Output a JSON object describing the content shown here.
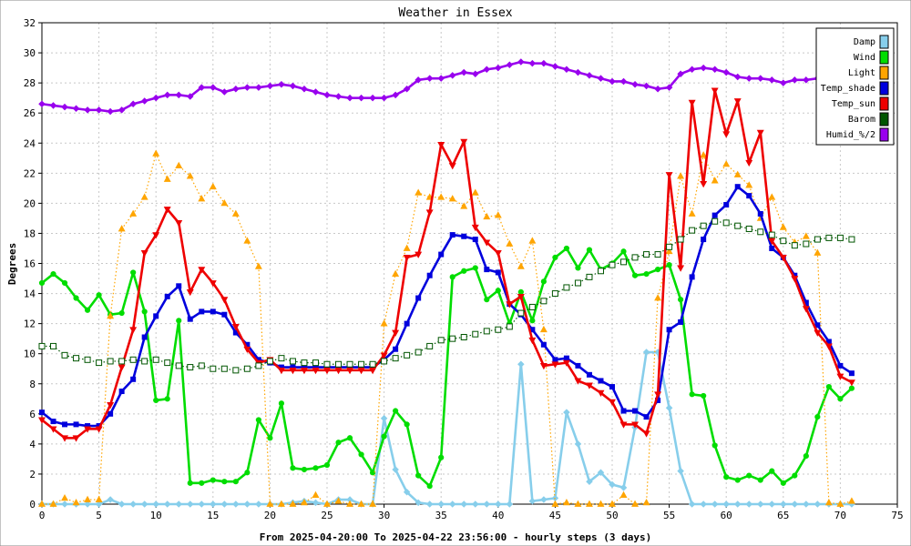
{
  "chart_data": {
    "type": "line",
    "title": "Weather in Essex",
    "xlabel": "From 2025-04-20:00 To 2025-04-22 23:56:00 - hourly steps (3 days)",
    "ylabel": "Degrees",
    "xlim": [
      0,
      75
    ],
    "ylim": [
      0,
      32
    ],
    "x_ticks": [
      0,
      5,
      10,
      15,
      20,
      25,
      30,
      35,
      40,
      45,
      50,
      55,
      60,
      65,
      70,
      75
    ],
    "y_ticks": [
      0,
      2,
      4,
      6,
      8,
      10,
      12,
      14,
      16,
      18,
      20,
      22,
      24,
      26,
      28,
      30,
      32
    ],
    "grid": true,
    "legend_position": "top-right",
    "series": [
      {
        "name": "Damp",
        "color": "#87ceeb",
        "style": "solid",
        "marker": "diamond",
        "markerFill": "#87ceeb",
        "values": [
          0,
          0,
          0,
          0,
          0,
          0,
          0.3,
          0,
          0,
          0,
          0,
          0,
          0,
          0,
          0,
          0,
          0,
          0,
          0,
          0,
          0,
          0,
          0.1,
          0.2,
          0.1,
          0,
          0.3,
          0.3,
          0,
          0,
          5.7,
          2.3,
          0.8,
          0.1,
          0,
          0,
          0,
          0,
          0,
          0,
          0,
          0,
          9.3,
          0.2,
          0.3,
          0.4,
          6.1,
          4,
          1.5,
          2.1,
          1.3,
          1.1,
          5.1,
          10.1,
          10.1,
          6.4,
          2.2,
          0,
          0,
          0,
          0,
          0,
          0,
          0,
          0,
          0,
          0,
          0,
          0,
          0,
          0,
          0
        ]
      },
      {
        "name": "Wind",
        "color": "#00dd00",
        "style": "solid",
        "marker": "circle",
        "markerFill": "#00dd00",
        "values": [
          14.7,
          15.3,
          14.7,
          13.7,
          12.9,
          13.9,
          12.6,
          12.7,
          15.4,
          12.8,
          6.9,
          7,
          12.2,
          1.4,
          1.4,
          1.6,
          1.5,
          1.5,
          2.1,
          5.6,
          4.4,
          6.7,
          2.4,
          2.3,
          2.4,
          2.6,
          4.1,
          4.4,
          3.3,
          2.1,
          4.5,
          6.2,
          5.3,
          1.9,
          1.2,
          3.1,
          15.1,
          15.5,
          15.7,
          13.6,
          14.2,
          12,
          14.1,
          12.2,
          14.8,
          16.4,
          17,
          15.7,
          16.9,
          15.6,
          16,
          16.8,
          15.2,
          15.3,
          15.6,
          15.9,
          13.6,
          7.3,
          7.2,
          3.9,
          1.8,
          1.6,
          1.9,
          1.6,
          2.2,
          1.4,
          1.9,
          3.2,
          5.8,
          7.8,
          7,
          7.7
        ]
      },
      {
        "name": "Light",
        "color": "#ffa500",
        "style": "dotted",
        "marker": "triangle",
        "markerFill": "#ffa500",
        "values": [
          0,
          0,
          0.4,
          0.1,
          0.3,
          0.3,
          12.5,
          18.3,
          19.3,
          20.4,
          23.3,
          21.6,
          22.5,
          21.8,
          20.3,
          21.1,
          20,
          19.3,
          17.5,
          15.8,
          0,
          0,
          0,
          0.1,
          0.6,
          0,
          0.2,
          0,
          0,
          0,
          12,
          15.3,
          17,
          20.7,
          20.4,
          20.4,
          20.3,
          19.8,
          20.7,
          19.1,
          19.2,
          17.3,
          15.8,
          17.5,
          11.6,
          0,
          0.1,
          0,
          0,
          0,
          0,
          0.6,
          0,
          0.1,
          13.7,
          16.8,
          21.8,
          19.3,
          23.2,
          21.5,
          22.6,
          21.9,
          21.2,
          19,
          20.4,
          18.4,
          17.4,
          17.8,
          16.7,
          0.1,
          0,
          0.2
        ]
      },
      {
        "name": "Temp_shade",
        "color": "#0000dd",
        "style": "solid",
        "marker": "square",
        "markerFill": "#0000dd",
        "values": [
          6.1,
          5.5,
          5.3,
          5.3,
          5.2,
          5.2,
          6,
          7.5,
          8.3,
          11.1,
          12.5,
          13.8,
          14.5,
          12.3,
          12.8,
          12.8,
          12.6,
          11.4,
          10.6,
          9.6,
          9.4,
          9.1,
          9.1,
          9.1,
          9.1,
          9.1,
          9.1,
          9.1,
          9.1,
          9.1,
          9.6,
          10.3,
          12,
          13.7,
          15.2,
          16.6,
          17.9,
          17.8,
          17.6,
          15.6,
          15.4,
          13.3,
          12.6,
          11.6,
          10.6,
          9.6,
          9.7,
          9.2,
          8.6,
          8.2,
          7.8,
          6.2,
          6.2,
          5.8,
          6.9,
          11.6,
          12.1,
          15.1,
          17.6,
          19.2,
          19.9,
          21.1,
          20.5,
          19.3,
          17,
          16.4,
          15.2,
          13.4,
          11.9,
          10.8,
          9.2,
          8.7
        ]
      },
      {
        "name": "Temp_sun",
        "color": "#ee0000",
        "style": "solid",
        "marker": "triangle-down",
        "markerFill": "#ee0000",
        "values": [
          5.6,
          5,
          4.4,
          4.4,
          5,
          5,
          6.6,
          9.1,
          11.6,
          16.7,
          17.9,
          19.6,
          18.7,
          14.1,
          15.6,
          14.7,
          13.6,
          11.8,
          10.3,
          9.4,
          9.6,
          8.9,
          8.9,
          8.9,
          8.9,
          8.9,
          8.9,
          8.9,
          8.9,
          8.9,
          9.9,
          11.4,
          16.4,
          16.6,
          19.4,
          23.9,
          22.5,
          24.1,
          18.4,
          17.4,
          16.7,
          13.3,
          13.8,
          10.9,
          9.2,
          9.3,
          9.4,
          8.2,
          7.9,
          7.4,
          6.8,
          5.3,
          5.3,
          4.7,
          7.3,
          21.9,
          15.7,
          26.7,
          21.3,
          27.5,
          24.6,
          26.8,
          22.7,
          24.7,
          17.5,
          16.4,
          15,
          13,
          11.4,
          10.5,
          8.5,
          8.1
        ]
      },
      {
        "name": "Barom",
        "color": "#005500",
        "style": "dotted",
        "marker": "square-open",
        "markerFill": "#ffffff",
        "values": [
          10.5,
          10.5,
          9.9,
          9.7,
          9.6,
          9.4,
          9.5,
          9.5,
          9.6,
          9.5,
          9.6,
          9.4,
          9.2,
          9.1,
          9.2,
          9,
          9,
          8.9,
          9,
          9.2,
          9.5,
          9.7,
          9.5,
          9.4,
          9.4,
          9.3,
          9.3,
          9.3,
          9.3,
          9.3,
          9.5,
          9.7,
          9.9,
          10.1,
          10.5,
          10.9,
          11,
          11.1,
          11.3,
          11.5,
          11.6,
          11.8,
          12.7,
          13.1,
          13.5,
          14,
          14.4,
          14.7,
          15.1,
          15.5,
          15.9,
          16.1,
          16.4,
          16.6,
          16.6,
          17.1,
          17.6,
          18.2,
          18.5,
          18.8,
          18.7,
          18.5,
          18.3,
          18.1,
          17.9,
          17.5,
          17.2,
          17.3,
          17.6,
          17.7,
          17.7,
          17.6
        ]
      },
      {
        "name": "Humid_%/2",
        "color": "#9900ee",
        "style": "solid",
        "marker": "diamond",
        "markerFill": "#9900ee",
        "values": [
          26.6,
          26.5,
          26.4,
          26.3,
          26.2,
          26.2,
          26.1,
          26.2,
          26.6,
          26.8,
          27,
          27.2,
          27.2,
          27.1,
          27.7,
          27.7,
          27.4,
          27.6,
          27.7,
          27.7,
          27.8,
          27.9,
          27.8,
          27.6,
          27.4,
          27.2,
          27.1,
          27,
          27,
          27,
          27,
          27.2,
          27.6,
          28.2,
          28.3,
          28.3,
          28.5,
          28.7,
          28.6,
          28.9,
          29,
          29.2,
          29.4,
          29.3,
          29.3,
          29.1,
          28.9,
          28.7,
          28.5,
          28.3,
          28.1,
          28.1,
          27.9,
          27.8,
          27.6,
          27.7,
          28.6,
          28.9,
          29,
          28.9,
          28.7,
          28.4,
          28.3,
          28.3,
          28.2,
          28,
          28.2,
          28.2,
          28.3,
          28.4,
          28.4,
          28.3
        ]
      }
    ]
  }
}
